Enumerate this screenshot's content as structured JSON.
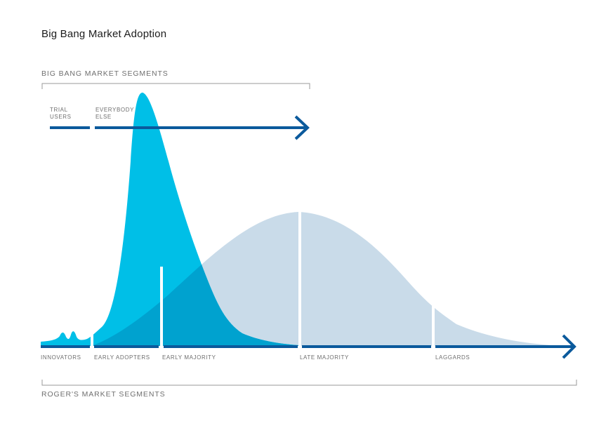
{
  "title": "Big Bang Market Adoption",
  "big_bang": {
    "heading": "BIG BANG MARKET SEGMENTS",
    "segments": [
      {
        "lines": [
          "TRIAL",
          "USERS"
        ]
      },
      {
        "lines": [
          "EVERYBODY",
          "ELSE"
        ]
      }
    ]
  },
  "rogers": {
    "heading": "ROGER'S MARKET SEGMENTS",
    "segments": [
      "INNOVATORS",
      "EARLY ADOPTERS",
      "EARLY MAJORITY",
      "LATE MAJORITY",
      "LAGGARDS"
    ]
  },
  "colors": {
    "big_bang_curve": "#00bfe7",
    "rogers_curve": "#c9dbe9",
    "overlap": "#00a2cf",
    "arrow": "#0b5a9c",
    "bracket": "#9a9a9a"
  }
}
